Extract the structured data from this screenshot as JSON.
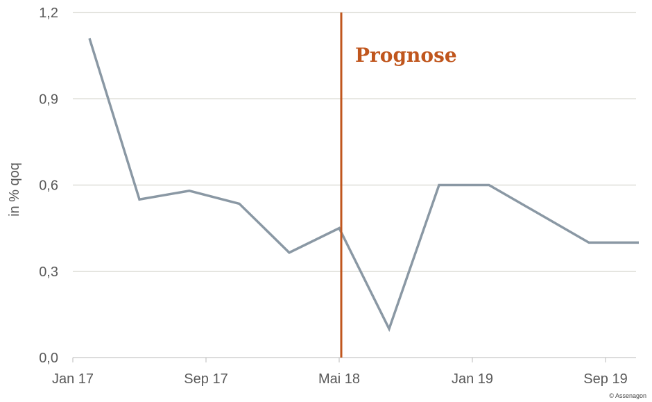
{
  "chart_data": {
    "type": "line",
    "title": "",
    "xlabel": "",
    "ylabel": "in % qoq",
    "ylim": [
      0,
      1.2
    ],
    "yticks": [
      0,
      0.3,
      0.6,
      0.9,
      1.2
    ],
    "ytick_labels": [
      "0,0",
      "0,3",
      "0,6",
      "0,9",
      "1,2"
    ],
    "xtick_labels": [
      "Jan 17",
      "Sep 17",
      "Mai 18",
      "Jan 19",
      "Sep 19"
    ],
    "x": [
      "Feb 17",
      "Mai 17",
      "Aug 17",
      "Nov 17",
      "Feb 18",
      "Mai 18",
      "Aug 18",
      "Nov 18",
      "Feb 19",
      "Mai 19",
      "Aug 19",
      "Nov 19"
    ],
    "values": [
      1.11,
      0.55,
      0.58,
      0.535,
      0.365,
      0.45,
      0.1,
      0.6,
      0.6,
      0.5,
      0.4,
      0.4
    ],
    "annotation": {
      "text": "Prognose",
      "x": "Mai 18",
      "color": "#c0561d"
    },
    "line_color": "#8a98a4",
    "grid": true,
    "legend": "none"
  },
  "credit": "© Assenagon"
}
